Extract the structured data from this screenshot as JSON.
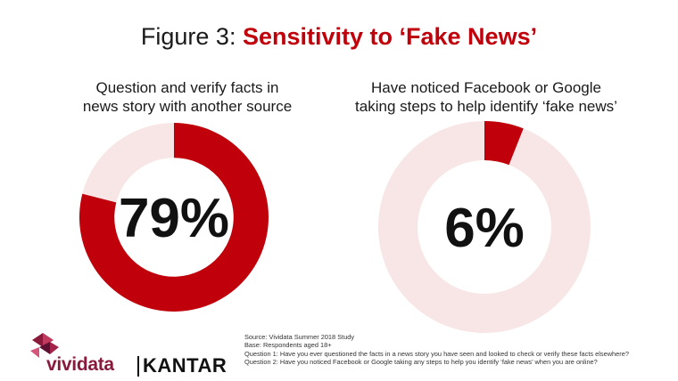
{
  "title": {
    "prefix": "Figure 3:",
    "highlight": "Sensitivity to ‘Fake News’"
  },
  "colors": {
    "accent": "#c0000b",
    "track": "#f8e6e6",
    "text": "#1a1a1a"
  },
  "chart_data": [
    {
      "type": "pie",
      "variant": "donut",
      "question_lines": [
        "Question and verify facts in",
        "news story with another source"
      ],
      "value": 79,
      "label": "79%",
      "slices": [
        {
          "value": 79,
          "color": "#c0000b"
        },
        {
          "value": 21,
          "color": "#f8e6e6"
        }
      ]
    },
    {
      "type": "pie",
      "variant": "donut",
      "question_lines": [
        "Have noticed Facebook or Google",
        "taking steps to help identify ‘fake news’"
      ],
      "value": 6,
      "label": "6%",
      "slices": [
        {
          "value": 6,
          "color": "#c0000b"
        },
        {
          "value": 94,
          "color": "#f8e6e6"
        }
      ]
    }
  ],
  "footer": {
    "logo_icon": "vividata-triangles-icon",
    "brand_vividata": "vividata",
    "brand_kantar": "KANTAR",
    "notes": [
      "Source: Vividata Summer 2018 Study",
      "Base: Respondents aged 18+",
      "Question 1: Have you ever questioned the facts in a news story you have seen and looked to check or verify these facts elsewhere?",
      "Question 2: Have you noticed Facebook or Google taking any steps to help you identify ‘fake news’ when you are online?"
    ]
  }
}
